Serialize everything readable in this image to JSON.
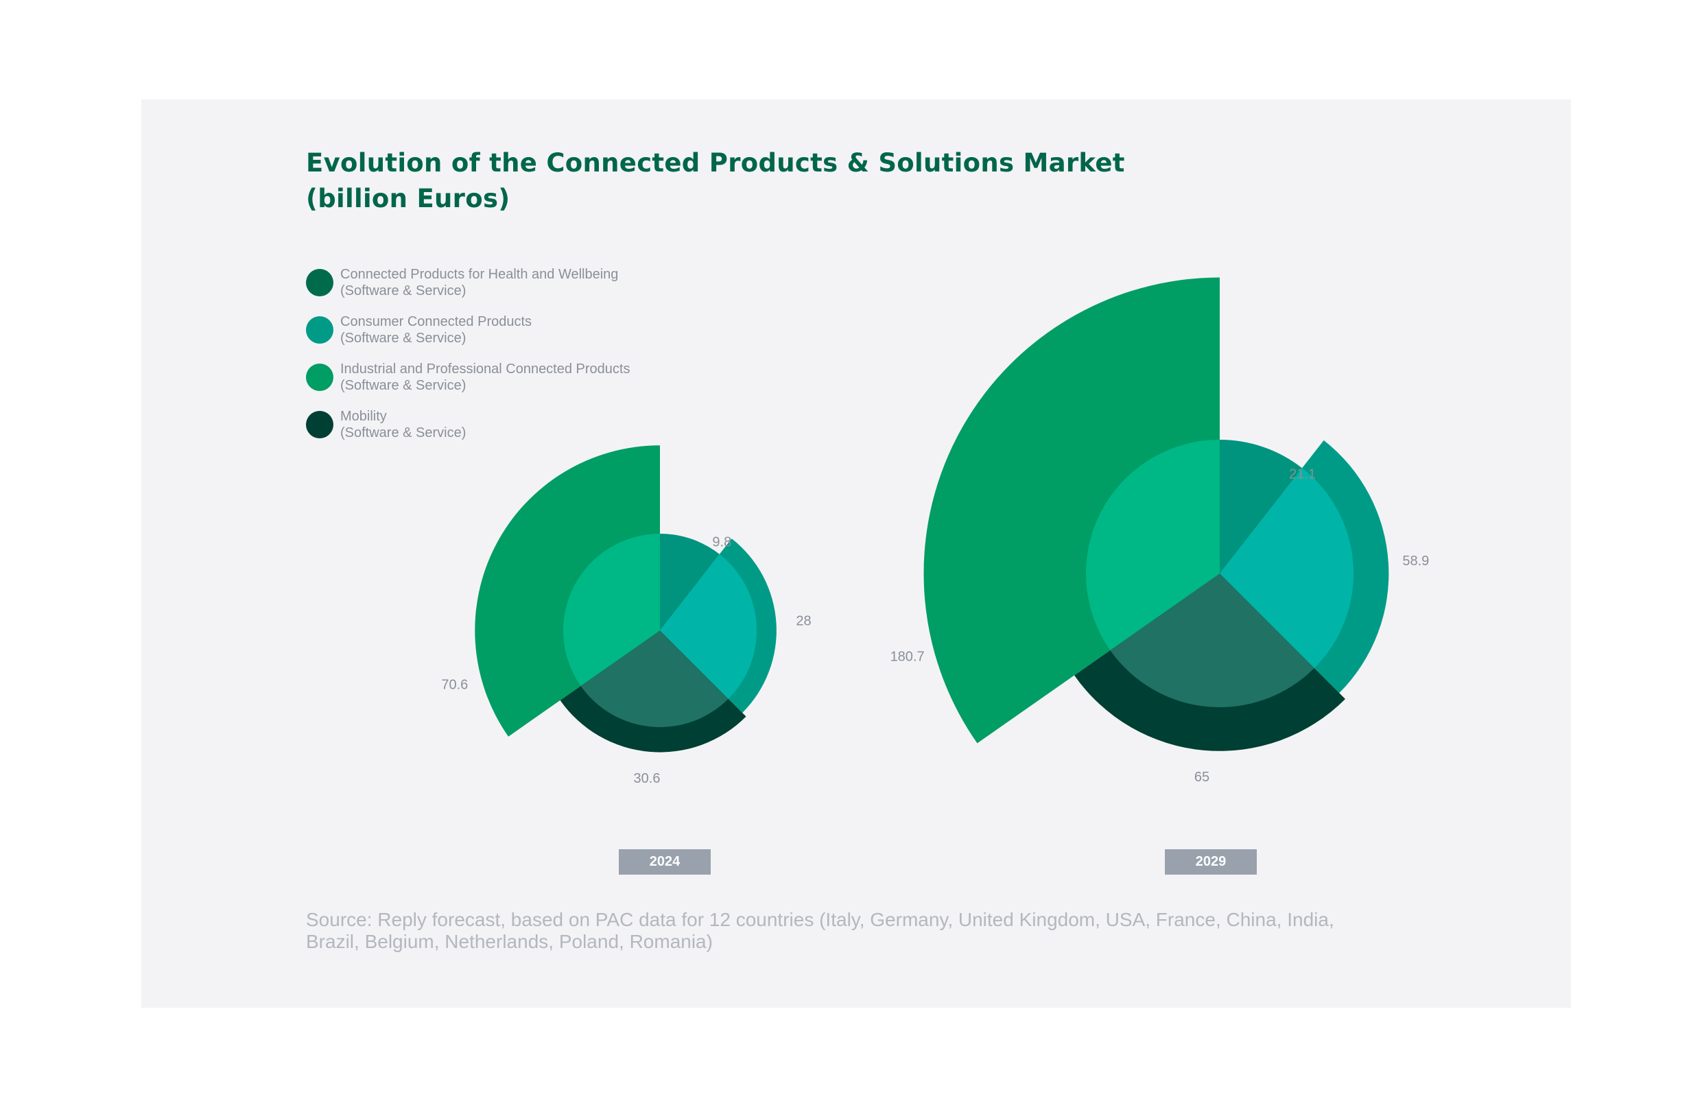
{
  "title": {
    "line1": "Evolution of the Connected Products & Solutions Market",
    "line2": "(billion Euros)"
  },
  "legend": [
    {
      "line1": "Connected Products for Health and Wellbeing",
      "line2": "(Software & Service)",
      "color": "#006b4b"
    },
    {
      "line1": "Consumer Connected Products",
      "line2": "(Software & Service)",
      "color": "#009b86"
    },
    {
      "line1": "Industrial and Professional Connected Products",
      "line2": "(Software & Service)",
      "color": "#009d64"
    },
    {
      "line1": "Mobility",
      "line2": "(Software & Service)",
      "color": "#003f33"
    }
  ],
  "chart_data": [
    {
      "type": "pie",
      "variant": "polar-area",
      "label": "2024",
      "categories": [
        "Connected Products for Health and Wellbeing (Software & Service)",
        "Consumer Connected Products (Software & Service)",
        "Mobility (Software & Service)",
        "Industrial and Professional Connected Products (Software & Service)"
      ],
      "values": [
        9.8,
        28,
        30.6,
        70.6
      ],
      "data_labels": [
        "9.8",
        "28",
        "30.6",
        "70.6"
      ],
      "colors": [
        "#006b4b",
        "#009b86",
        "#003f33",
        "#009d64"
      ],
      "inner_colors": [
        "#00937e",
        "#00b5a8",
        "#1f7264",
        "#00b885"
      ]
    },
    {
      "type": "pie",
      "variant": "polar-area",
      "label": "2029",
      "categories": [
        "Connected Products for Health and Wellbeing (Software & Service)",
        "Consumer Connected Products (Software & Service)",
        "Mobility (Software & Service)",
        "Industrial and Professional Connected Products (Software & Service)"
      ],
      "values": [
        21.1,
        58.9,
        65,
        180.7
      ],
      "data_labels": [
        "21.1",
        "58.9",
        "65",
        "180.7"
      ],
      "colors": [
        "#006b4b",
        "#009b86",
        "#003f33",
        "#009d64"
      ],
      "inner_colors": [
        "#00937e",
        "#00b5a8",
        "#1f7264",
        "#00b885"
      ]
    }
  ],
  "source": {
    "line1": "Source: Reply forecast, based on PAC data for 12 countries (Italy, Germany, United Kingdom, USA, France, China, India,",
    "line2": "Brazil, Belgium, Netherlands, Poland, Romania)"
  }
}
